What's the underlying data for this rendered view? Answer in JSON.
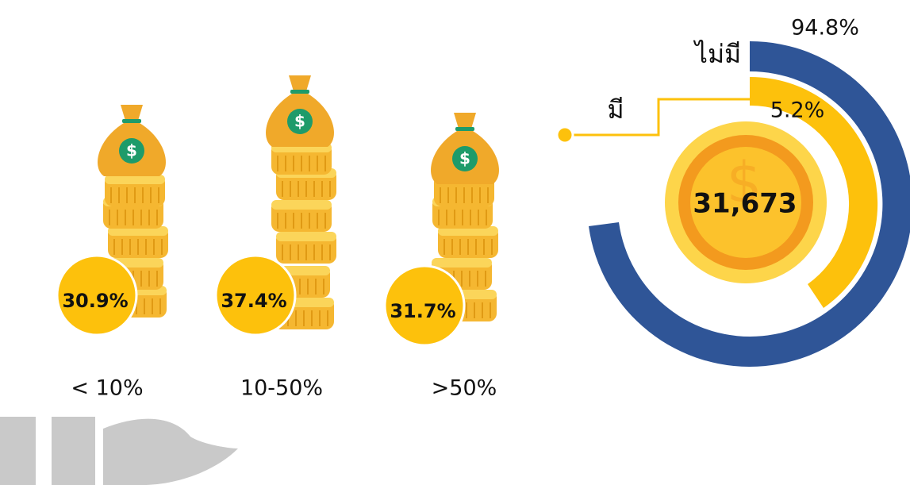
{
  "groups": [
    {
      "label": "< 10%",
      "value": "30.9%"
    },
    {
      "label": "10-50%",
      "value": "37.4%"
    },
    {
      "label": ">50%",
      "value": "31.7%"
    }
  ],
  "donut": {
    "center": "31,673",
    "segments": [
      {
        "label": "ไม่มี",
        "value": "94.8%"
      },
      {
        "label": "มี",
        "value": "5.2%"
      }
    ]
  }
}
